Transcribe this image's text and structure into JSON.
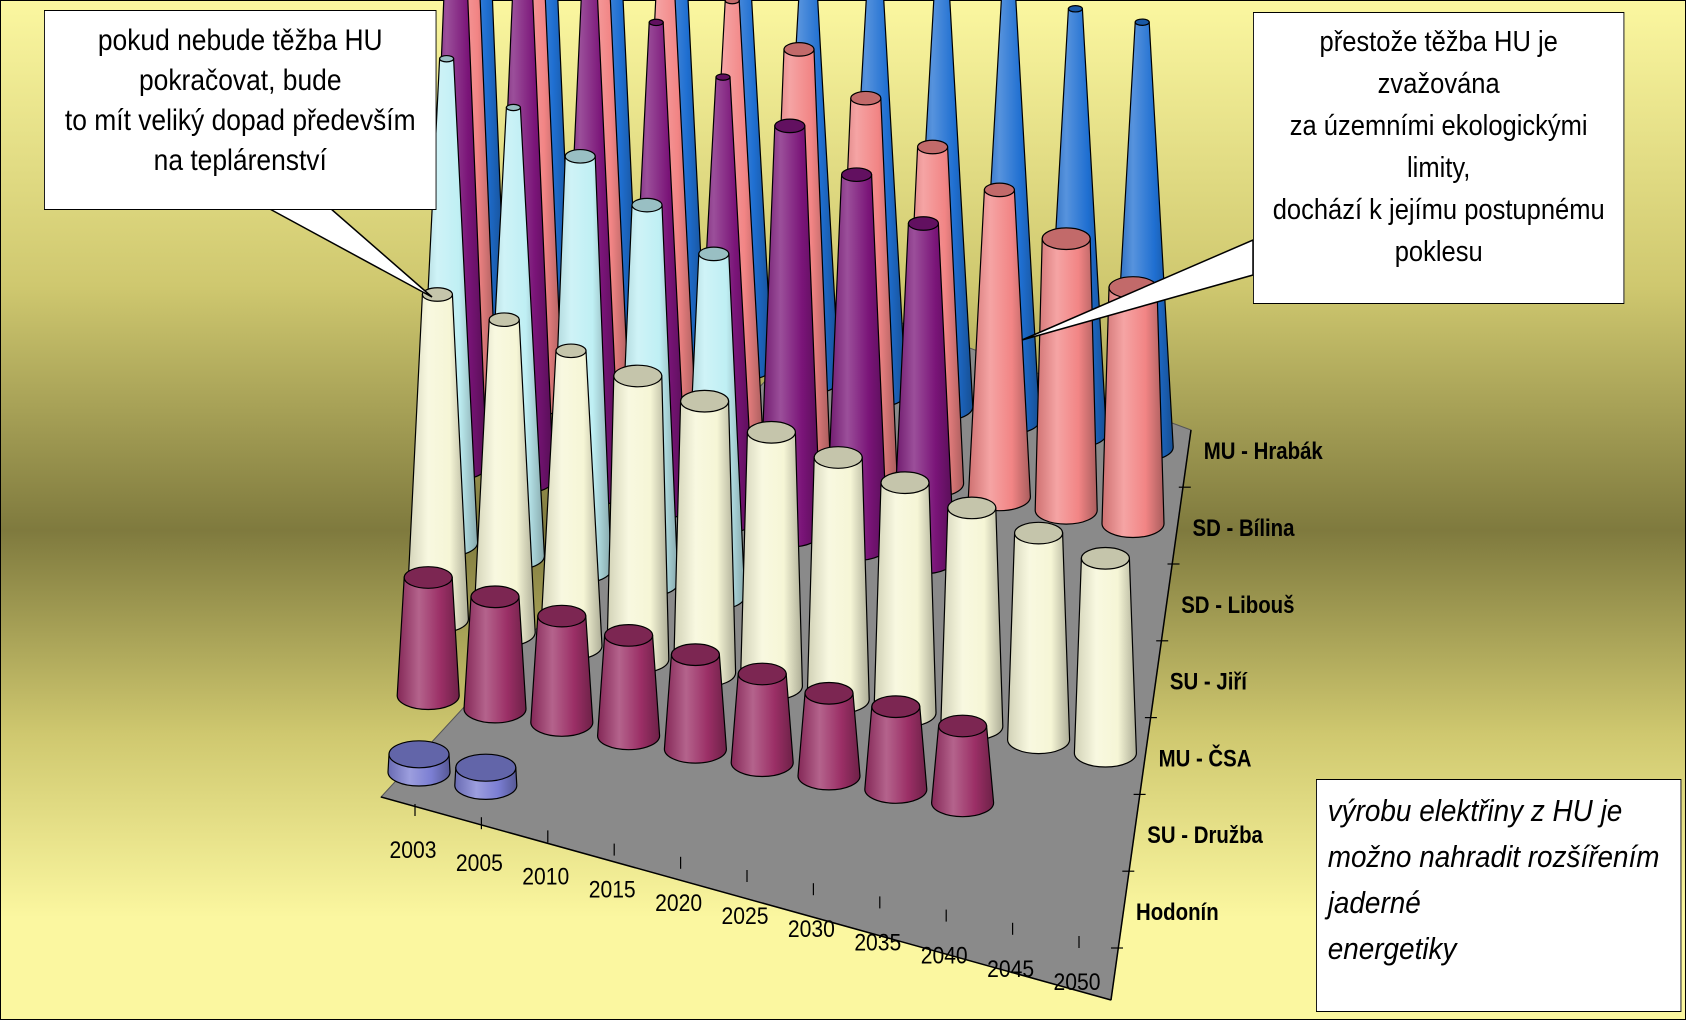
{
  "chart_data": {
    "type": "3d-cone",
    "categories": [
      "2003",
      "2005",
      "2010",
      "2015",
      "2020",
      "2025",
      "2030",
      "2035",
      "2040",
      "2045",
      "2050"
    ],
    "series": [
      {
        "name": "MU - Hrabák",
        "color": "#1f6fd1",
        "values": [
          100,
          94,
          88,
          82,
          72,
          72,
          72,
          72,
          72,
          72,
          72
        ]
      },
      {
        "name": "SD - Bílina",
        "color": "#f28585",
        "values": [
          100,
          94,
          88,
          82,
          75,
          69,
          63,
          57,
          52,
          46,
          40
        ]
      },
      {
        "name": "SD - Libouš",
        "color": "#7a1478",
        "values": [
          100,
          94,
          88,
          82,
          75,
          69,
          63,
          57,
          0,
          0,
          0
        ]
      },
      {
        "name": "SU - Jiří",
        "color": "#bfeff4",
        "values": [
          82,
          76,
          70,
          64,
          58,
          0,
          0,
          0,
          0,
          0,
          0
        ]
      },
      {
        "name": "MU - ČSA",
        "color": "#f6f6d6",
        "values": [
          55,
          53,
          50,
          48,
          46,
          43,
          41,
          39,
          37,
          35,
          33
        ]
      },
      {
        "name": "SU - Družba",
        "color": "#9b2f66",
        "values": [
          20,
          19,
          18,
          17,
          16,
          15,
          14,
          14,
          13,
          0,
          0
        ]
      },
      {
        "name": "Hodonín",
        "color": "#7b7ed3",
        "values": [
          3,
          3,
          0,
          0,
          0,
          0,
          0,
          0,
          0,
          0,
          0
        ]
      }
    ]
  },
  "callouts": {
    "left": [
      "pokud nebude těžba HU",
      "pokračovat, bude",
      "to mít veliký dopad především",
      "na teplárenství"
    ],
    "right": [
      "přestože těžba HU je",
      "zvažována",
      "za územními ekologickými",
      "limity,",
      "dochází k jejímu postupnému",
      "poklesu"
    ],
    "bottom": [
      "výrobu elektřiny z HU je",
      "možno nahradit rozšířením",
      "jaderné",
      "energetiky"
    ]
  },
  "colors": {
    "background_top": "#fbf7a0",
    "background_mid": "#7f7a3e",
    "floor": "#8a8a8a"
  }
}
